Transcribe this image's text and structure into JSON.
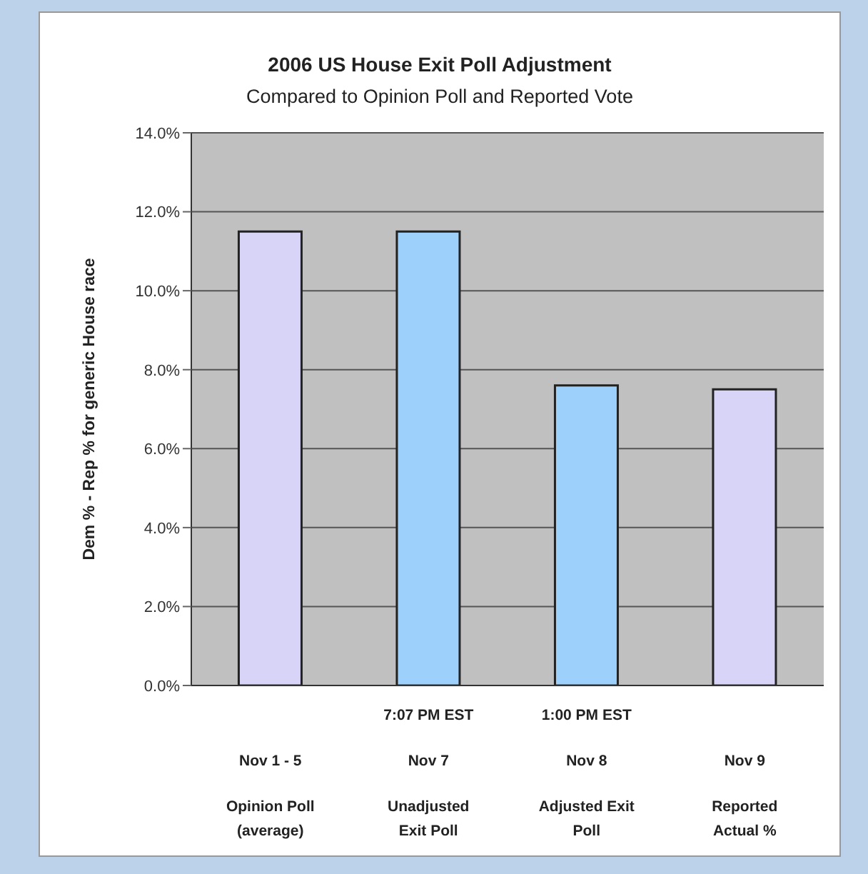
{
  "chart_data": {
    "type": "bar",
    "title": "2006 US House Exit Poll Adjustment",
    "subtitle": "Compared to Opinion Poll and Reported Vote",
    "ylabel": "Dem % - Rep % for generic House race",
    "categories": [
      "Nov 1 - 5\nOpinion Poll\n(average)",
      "7:07 PM EST\nNov 7\nUnadjusted\nExit Poll",
      "1:00 PM EST\nNov 8\nAdjusted Exit\nPoll",
      "Nov 9\nReported\nActual %"
    ],
    "values": [
      11.5,
      11.5,
      7.6,
      7.5
    ],
    "colors": [
      "#d8d4f8",
      "#9dd0fa",
      "#9dd0fa",
      "#d8d4f8"
    ],
    "ylim": [
      0,
      14
    ],
    "yticks": [
      {
        "value": 0,
        "label": "0.0%"
      },
      {
        "value": 2,
        "label": "2.0%"
      },
      {
        "value": 4,
        "label": "4.0%"
      },
      {
        "value": 6,
        "label": "6.0%"
      },
      {
        "value": 8,
        "label": "8.0%"
      },
      {
        "value": 10,
        "label": "10.0%"
      },
      {
        "value": 12,
        "label": "12.0%"
      },
      {
        "value": 14,
        "label": "14.0%"
      }
    ],
    "grid": "y",
    "legend": false
  }
}
